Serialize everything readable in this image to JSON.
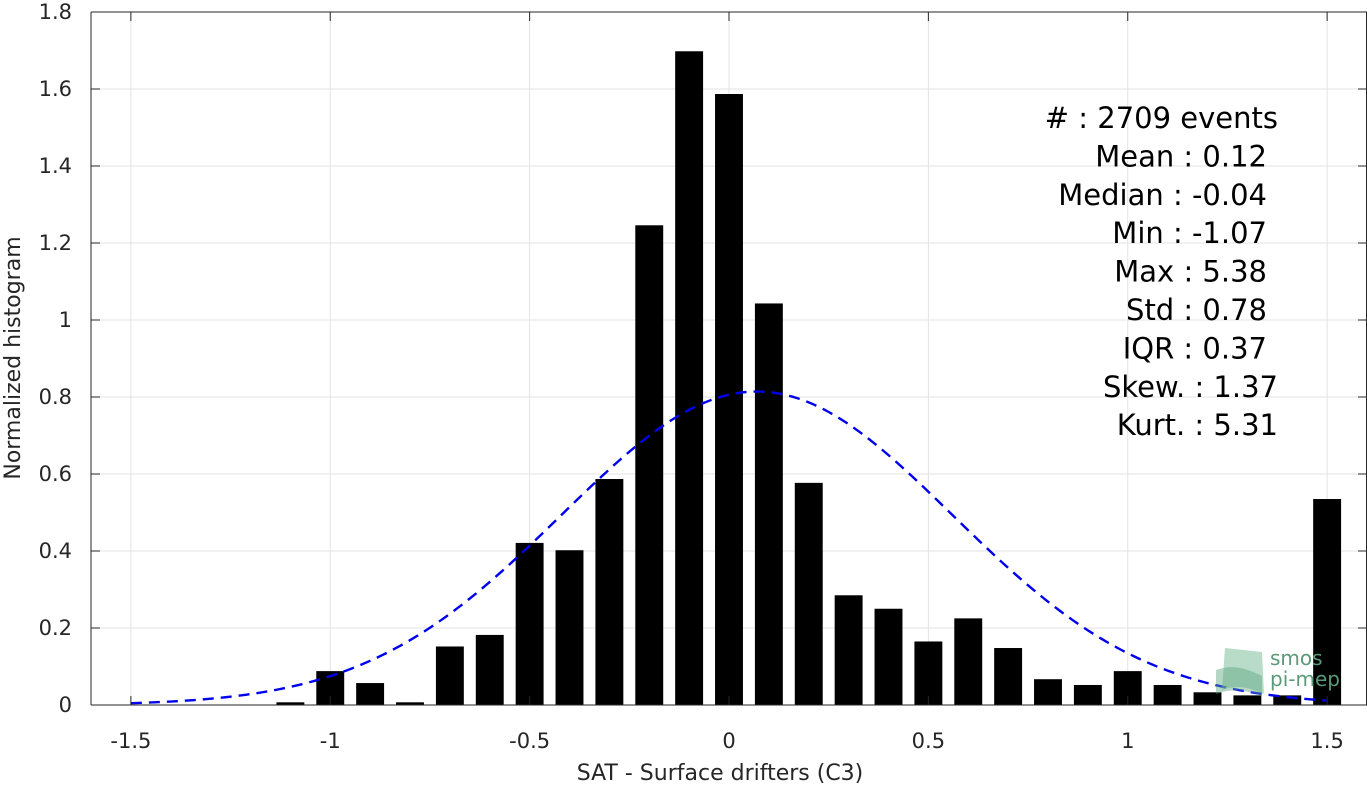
{
  "chart_data": {
    "type": "bar",
    "xlabel": "SAT - Surface drifters (C3)",
    "ylabel": "Normalized histogram",
    "xlim": [
      -1.6,
      1.6
    ],
    "ylim": [
      0,
      1.8
    ],
    "grid": true,
    "xticks": [
      -1.5,
      -1,
      -0.5,
      0,
      0.5,
      1,
      1.5
    ],
    "xtick_labels": [
      "-1.5",
      "-1",
      "-0.5",
      "0",
      "0.5",
      "1",
      "1.5"
    ],
    "yticks": [
      0,
      0.2,
      0.4,
      0.6,
      0.8,
      1,
      1.2,
      1.4,
      1.6,
      1.8
    ],
    "ytick_labels": [
      "0",
      "0.2",
      "0.4",
      "0.6",
      "0.8",
      "1",
      "1.2",
      "1.4",
      "1.6",
      "1.8"
    ],
    "bar_width": 0.07,
    "bar_color": "#000000",
    "x": [
      -1.1,
      -1.0,
      -0.9,
      -0.8,
      -0.7,
      -0.6,
      -0.5,
      -0.4,
      -0.3,
      -0.2,
      -0.1,
      0.0,
      0.1,
      0.2,
      0.3,
      0.4,
      0.5,
      0.6,
      0.7,
      0.8,
      0.9,
      1.0,
      1.1,
      1.2,
      1.3,
      1.4,
      1.5
    ],
    "values": [
      0.007,
      0.088,
      0.057,
      0.007,
      0.152,
      0.182,
      0.421,
      0.402,
      0.587,
      1.246,
      1.698,
      1.587,
      1.043,
      0.577,
      0.285,
      0.25,
      0.165,
      0.225,
      0.148,
      0.067,
      0.052,
      0.088,
      0.052,
      0.033,
      0.025,
      0.025,
      0.535
    ],
    "fit": {
      "type": "normal",
      "mean": 0.07,
      "std": 0.49,
      "color": "#0000ee",
      "style": "dashed",
      "x_range": [
        -1.5,
        1.5
      ]
    },
    "stats": [
      {
        "label": "#  : 2709 events"
      },
      {
        "label": "Mean : 0.12"
      },
      {
        "label": "Median : -0.04"
      },
      {
        "label": "Min : -1.07"
      },
      {
        "label": "Max : 5.38"
      },
      {
        "label": "Std : 0.78"
      },
      {
        "label": "IQR : 0.37"
      },
      {
        "label": "Skew. : 1.37"
      },
      {
        "label": "Kurt. : 5.31"
      }
    ]
  },
  "logo": {
    "line1": "smos",
    "line2": "pi-mep"
  }
}
